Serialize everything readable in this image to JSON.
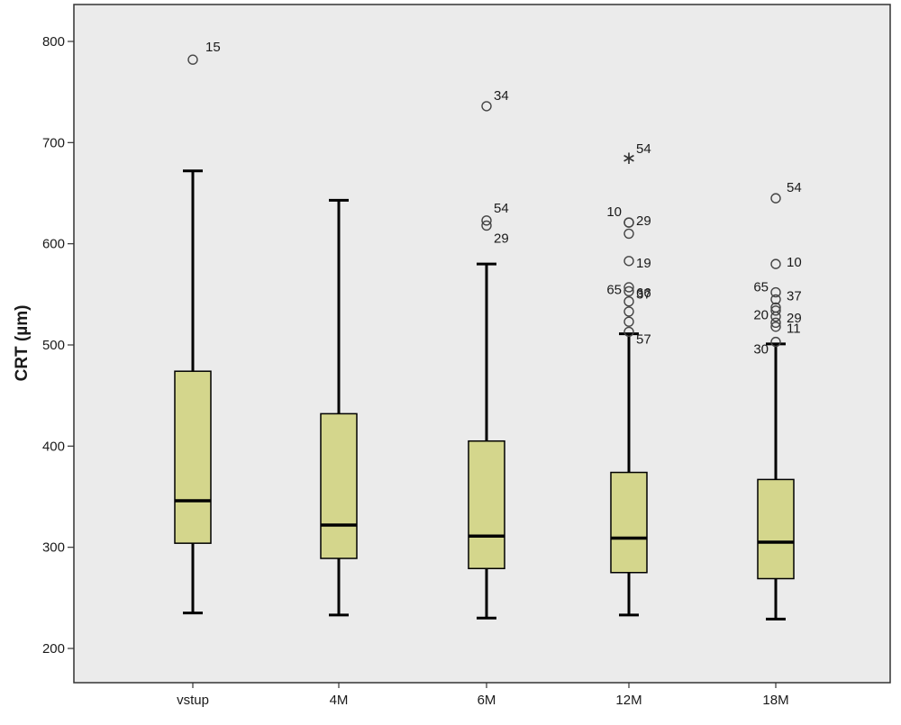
{
  "chart_data": {
    "type": "boxplot",
    "title": "",
    "xlabel": "",
    "ylabel": "CRT (µm)",
    "ylim": [
      180,
      840
    ],
    "yticks": [
      200,
      300,
      400,
      500,
      600,
      700,
      800
    ],
    "grid": false,
    "colors": {
      "plot_background": "#ebebeb",
      "box_fill": "#d4d68c",
      "stroke": "#000000",
      "text": "#1a1a1a"
    },
    "categories": [
      "vstup",
      "4M",
      "6M",
      "12M",
      "18M"
    ],
    "boxes": [
      {
        "category": "vstup",
        "whisker_low": 235,
        "q1": 304,
        "median": 346,
        "q3": 474,
        "whisker_high": 672,
        "outliers": [
          {
            "value": 782,
            "label": "15",
            "marker": "circle"
          }
        ]
      },
      {
        "category": "4M",
        "whisker_low": 233,
        "q1": 289,
        "median": 322,
        "q3": 432,
        "whisker_high": 643,
        "outliers": []
      },
      {
        "category": "6M",
        "whisker_low": 230,
        "q1": 279,
        "median": 311,
        "q3": 405,
        "whisker_high": 580,
        "outliers": [
          {
            "value": 736,
            "label": "34",
            "marker": "circle"
          },
          {
            "value": 623,
            "label": "54",
            "marker": "circle"
          },
          {
            "value": 618,
            "label": "29",
            "marker": "circle"
          }
        ]
      },
      {
        "category": "12M",
        "whisker_low": 233,
        "q1": 275,
        "median": 309,
        "q3": 374,
        "whisker_high": 511,
        "outliers": [
          {
            "value": 685,
            "label": "54",
            "marker": "star"
          },
          {
            "value": 621,
            "label": "10",
            "marker": "circle"
          },
          {
            "value": 621,
            "label": "29",
            "marker": "circle"
          },
          {
            "value": 610,
            "label": "",
            "marker": "circle"
          },
          {
            "value": 583,
            "label": "19",
            "marker": "circle"
          },
          {
            "value": 557,
            "label": "66",
            "marker": "circle"
          },
          {
            "value": 553,
            "label": "65",
            "marker": "circle"
          },
          {
            "value": 543,
            "label": "37",
            "marker": "circle"
          },
          {
            "value": 533,
            "label": "",
            "marker": "circle"
          },
          {
            "value": 523,
            "label": "",
            "marker": "circle"
          },
          {
            "value": 513,
            "label": "57",
            "marker": "circle"
          }
        ]
      },
      {
        "category": "18M",
        "whisker_low": 229,
        "q1": 269,
        "median": 305,
        "q3": 367,
        "whisker_high": 501,
        "outliers": [
          {
            "value": 645,
            "label": "54",
            "marker": "circle"
          },
          {
            "value": 580,
            "label": "10",
            "marker": "circle"
          },
          {
            "value": 552,
            "label": "65",
            "marker": "circle"
          },
          {
            "value": 545,
            "label": "37",
            "marker": "circle"
          },
          {
            "value": 537,
            "label": "20",
            "marker": "circle"
          },
          {
            "value": 534,
            "label": "29",
            "marker": "circle"
          },
          {
            "value": 528,
            "label": "",
            "marker": "circle"
          },
          {
            "value": 522,
            "label": "11",
            "marker": "circle"
          },
          {
            "value": 518,
            "label": "",
            "marker": "circle"
          },
          {
            "value": 503,
            "label": "30",
            "marker": "circle"
          }
        ]
      }
    ]
  }
}
